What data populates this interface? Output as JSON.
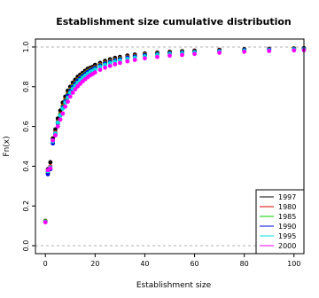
{
  "chart_data": {
    "type": "scatter",
    "title": "Establishment size cumulative distribution",
    "xlabel": "Establishment size",
    "ylabel": "Fn(x)",
    "xlim": [
      -4,
      104
    ],
    "ylim": [
      -0.04,
      1.04
    ],
    "x_ticks": [
      0,
      20,
      40,
      60,
      80,
      100
    ],
    "y_ticks": [
      0.0,
      0.2,
      0.4,
      0.6,
      0.8,
      1.0
    ],
    "reference_lines_y": [
      0.0,
      1.0
    ],
    "legend_position": "bottom-right",
    "series": [
      {
        "name": "1997",
        "color": "#000000",
        "points": [
          [
            0,
            0.125
          ],
          [
            1,
            0.385
          ],
          [
            2,
            0.42
          ],
          [
            3,
            0.54
          ],
          [
            4,
            0.585
          ],
          [
            5,
            0.64
          ],
          [
            6,
            0.68
          ],
          [
            7,
            0.72
          ],
          [
            8,
            0.75
          ],
          [
            9,
            0.78
          ],
          [
            10,
            0.8
          ],
          [
            11,
            0.82
          ],
          [
            12,
            0.835
          ],
          [
            13,
            0.85
          ],
          [
            14,
            0.86
          ],
          [
            15,
            0.87
          ],
          [
            16,
            0.88
          ],
          [
            17,
            0.89
          ],
          [
            18,
            0.895
          ],
          [
            19,
            0.9
          ],
          [
            20,
            0.91
          ],
          [
            22,
            0.92
          ],
          [
            24,
            0.93
          ],
          [
            26,
            0.938
          ],
          [
            28,
            0.945
          ],
          [
            30,
            0.95
          ],
          [
            33,
            0.957
          ],
          [
            36,
            0.962
          ],
          [
            40,
            0.967
          ],
          [
            45,
            0.972
          ],
          [
            50,
            0.976
          ],
          [
            55,
            0.979
          ],
          [
            60,
            0.982
          ],
          [
            70,
            0.986
          ],
          [
            80,
            0.989
          ],
          [
            90,
            0.991
          ],
          [
            100,
            0.993
          ],
          [
            104,
            0.994
          ]
        ]
      },
      {
        "name": "1980",
        "color": "#dd0000",
        "points": [
          [
            0,
            0.124
          ],
          [
            1,
            0.37
          ],
          [
            2,
            0.4
          ],
          [
            3,
            0.525
          ],
          [
            4,
            0.57
          ],
          [
            5,
            0.625
          ],
          [
            6,
            0.665
          ],
          [
            7,
            0.705
          ],
          [
            8,
            0.735
          ],
          [
            9,
            0.765
          ],
          [
            10,
            0.787
          ],
          [
            11,
            0.807
          ],
          [
            12,
            0.822
          ],
          [
            13,
            0.838
          ],
          [
            14,
            0.85
          ],
          [
            15,
            0.86
          ],
          [
            16,
            0.87
          ],
          [
            17,
            0.88
          ],
          [
            18,
            0.887
          ],
          [
            19,
            0.893
          ],
          [
            20,
            0.9
          ],
          [
            22,
            0.912
          ],
          [
            24,
            0.922
          ],
          [
            26,
            0.93
          ],
          [
            28,
            0.938
          ],
          [
            30,
            0.944
          ],
          [
            33,
            0.951
          ],
          [
            36,
            0.957
          ],
          [
            40,
            0.962
          ],
          [
            45,
            0.968
          ],
          [
            50,
            0.972
          ],
          [
            55,
            0.976
          ],
          [
            60,
            0.979
          ],
          [
            70,
            0.983
          ],
          [
            80,
            0.986
          ],
          [
            90,
            0.989
          ],
          [
            100,
            0.991
          ],
          [
            104,
            0.992
          ]
        ]
      },
      {
        "name": "1985",
        "color": "#00cc00",
        "points": [
          [
            0,
            0.123
          ],
          [
            1,
            0.365
          ],
          [
            2,
            0.39
          ],
          [
            3,
            0.52
          ],
          [
            4,
            0.565
          ],
          [
            5,
            0.62
          ],
          [
            6,
            0.66
          ],
          [
            7,
            0.7
          ],
          [
            8,
            0.73
          ],
          [
            9,
            0.76
          ],
          [
            10,
            0.783
          ],
          [
            11,
            0.803
          ],
          [
            12,
            0.818
          ],
          [
            13,
            0.834
          ],
          [
            14,
            0.846
          ],
          [
            15,
            0.857
          ],
          [
            16,
            0.867
          ],
          [
            17,
            0.877
          ],
          [
            18,
            0.884
          ],
          [
            19,
            0.89
          ],
          [
            20,
            0.897
          ],
          [
            22,
            0.909
          ],
          [
            24,
            0.919
          ],
          [
            26,
            0.927
          ],
          [
            28,
            0.935
          ],
          [
            30,
            0.941
          ],
          [
            33,
            0.948
          ],
          [
            36,
            0.954
          ],
          [
            40,
            0.96
          ],
          [
            45,
            0.966
          ],
          [
            50,
            0.97
          ],
          [
            55,
            0.974
          ],
          [
            60,
            0.977
          ],
          [
            70,
            0.981
          ],
          [
            80,
            0.985
          ],
          [
            90,
            0.988
          ],
          [
            100,
            0.99
          ],
          [
            104,
            0.991
          ]
        ]
      },
      {
        "name": "1990",
        "color": "#0000dd",
        "points": [
          [
            0,
            0.12
          ],
          [
            1,
            0.36
          ],
          [
            2,
            0.385
          ],
          [
            3,
            0.515
          ],
          [
            4,
            0.56
          ],
          [
            5,
            0.615
          ],
          [
            6,
            0.655
          ],
          [
            7,
            0.695
          ],
          [
            8,
            0.725
          ],
          [
            9,
            0.755
          ],
          [
            10,
            0.778
          ],
          [
            11,
            0.798
          ],
          [
            12,
            0.814
          ],
          [
            13,
            0.83
          ],
          [
            14,
            0.842
          ],
          [
            15,
            0.853
          ],
          [
            16,
            0.863
          ],
          [
            17,
            0.873
          ],
          [
            18,
            0.88
          ],
          [
            19,
            0.887
          ],
          [
            20,
            0.894
          ],
          [
            22,
            0.906
          ],
          [
            24,
            0.916
          ],
          [
            26,
            0.924
          ],
          [
            28,
            0.932
          ],
          [
            30,
            0.938
          ],
          [
            33,
            0.946
          ],
          [
            36,
            0.952
          ],
          [
            40,
            0.958
          ],
          [
            45,
            0.964
          ],
          [
            50,
            0.968
          ],
          [
            55,
            0.972
          ],
          [
            60,
            0.975
          ],
          [
            70,
            0.98
          ],
          [
            80,
            0.984
          ],
          [
            90,
            0.987
          ],
          [
            100,
            0.989
          ],
          [
            104,
            0.99
          ]
        ]
      },
      {
        "name": "1995",
        "color": "#00dddd",
        "points": [
          [
            0,
            0.12
          ],
          [
            1,
            0.375
          ],
          [
            2,
            0.395
          ],
          [
            3,
            0.525
          ],
          [
            4,
            0.565
          ],
          [
            5,
            0.62
          ],
          [
            6,
            0.655
          ],
          [
            7,
            0.69
          ],
          [
            8,
            0.72
          ],
          [
            9,
            0.745
          ],
          [
            10,
            0.77
          ],
          [
            11,
            0.79
          ],
          [
            12,
            0.805
          ],
          [
            13,
            0.82
          ],
          [
            14,
            0.833
          ],
          [
            15,
            0.845
          ],
          [
            16,
            0.855
          ],
          [
            17,
            0.865
          ],
          [
            18,
            0.873
          ],
          [
            19,
            0.88
          ],
          [
            20,
            0.887
          ],
          [
            22,
            0.9
          ],
          [
            24,
            0.91
          ],
          [
            26,
            0.918
          ],
          [
            28,
            0.926
          ],
          [
            30,
            0.932
          ],
          [
            33,
            0.94
          ],
          [
            36,
            0.946
          ],
          [
            40,
            0.953
          ],
          [
            45,
            0.96
          ],
          [
            50,
            0.964
          ],
          [
            55,
            0.968
          ],
          [
            60,
            0.972
          ],
          [
            70,
            0.977
          ],
          [
            80,
            0.981
          ],
          [
            90,
            0.984
          ],
          [
            100,
            0.987
          ],
          [
            104,
            0.988
          ]
        ]
      },
      {
        "name": "2000",
        "color": "#ff00ff",
        "points": [
          [
            0,
            0.118
          ],
          [
            1,
            0.38
          ],
          [
            2,
            0.39
          ],
          [
            3,
            0.53
          ],
          [
            4,
            0.555
          ],
          [
            5,
            0.6
          ],
          [
            6,
            0.635
          ],
          [
            7,
            0.665
          ],
          [
            8,
            0.7
          ],
          [
            9,
            0.725
          ],
          [
            10,
            0.75
          ],
          [
            11,
            0.77
          ],
          [
            12,
            0.787
          ],
          [
            13,
            0.802
          ],
          [
            14,
            0.815
          ],
          [
            15,
            0.827
          ],
          [
            16,
            0.838
          ],
          [
            17,
            0.848
          ],
          [
            18,
            0.857
          ],
          [
            19,
            0.864
          ],
          [
            20,
            0.872
          ],
          [
            22,
            0.885
          ],
          [
            24,
            0.896
          ],
          [
            26,
            0.905
          ],
          [
            28,
            0.913
          ],
          [
            30,
            0.92
          ],
          [
            33,
            0.928
          ],
          [
            36,
            0.935
          ],
          [
            40,
            0.943
          ],
          [
            45,
            0.95
          ],
          [
            50,
            0.956
          ],
          [
            55,
            0.96
          ],
          [
            60,
            0.965
          ],
          [
            70,
            0.971
          ],
          [
            80,
            0.976
          ],
          [
            90,
            0.98
          ],
          [
            100,
            0.983
          ],
          [
            104,
            0.984
          ]
        ]
      }
    ]
  }
}
